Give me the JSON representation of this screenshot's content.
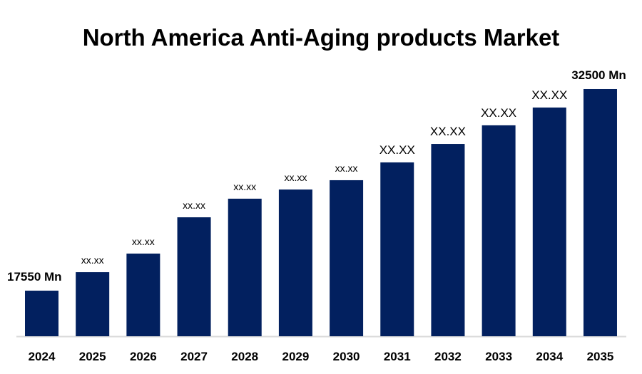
{
  "chart_data": {
    "type": "bar",
    "title": "North America Anti-Aging products Market",
    "xlabel": "",
    "ylabel": "",
    "categories": [
      "2024",
      "2025",
      "2026",
      "2027",
      "2028",
      "2029",
      "2030",
      "2031",
      "2032",
      "2033",
      "2034",
      "2035"
    ],
    "values": [
      17550,
      18920,
      20300,
      22990,
      24370,
      25050,
      25740,
      27060,
      28430,
      29810,
      31130,
      32500
    ],
    "data_labels": [
      "17550  Mn",
      "xx.xx",
      "xx.xx",
      "xx.xx",
      "xx.xx",
      "xx.xx",
      "xx.xx",
      "XX.XX",
      "XX.XX",
      "XX.XX",
      "XX.XX",
      "32500 Mn"
    ],
    "ylim": [
      14170,
      33820
    ],
    "grid": false,
    "legend": "none",
    "colors": {
      "bar": "#02205F",
      "axis": "#D9D9D9",
      "text": "#000000"
    }
  }
}
